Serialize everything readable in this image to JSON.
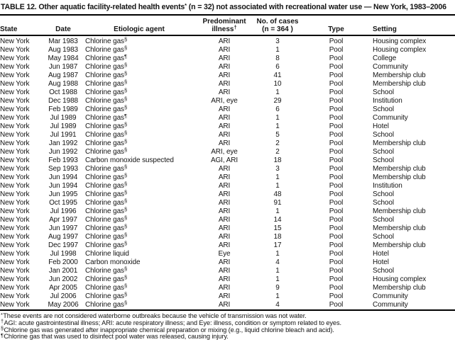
{
  "title": {
    "pre": "TABLE 12. Other aquatic facility-related health events",
    "sup": "*",
    "post": " (n = 32) not associated with recreational water use — New York, 1983–2006"
  },
  "table": {
    "headers": {
      "state": "State",
      "date": "Date",
      "agent": "Etiologic agent",
      "illness_line1": "Predominant",
      "illness_base": "illness",
      "illness_sup": "†",
      "cases_line1": "No. of cases",
      "cases_line2": "(n = 364 )",
      "type": "Type",
      "setting": "Setting"
    },
    "rows": [
      {
        "state": "New York",
        "date": "Mar 1983",
        "agent": "Chlorine gas",
        "agent_sup": "§",
        "illness": "ARI",
        "cases": 3,
        "type": "Pool",
        "setting": "Housing complex"
      },
      {
        "state": "New York",
        "date": "Aug 1983",
        "agent": "Chlorine gas",
        "agent_sup": "§",
        "illness": "ARI",
        "cases": 1,
        "type": "Pool",
        "setting": "Housing complex"
      },
      {
        "state": "New York",
        "date": "May 1984",
        "agent": "Chlorine gas",
        "agent_sup": "¶",
        "illness": "ARI",
        "cases": 8,
        "type": "Pool",
        "setting": "College"
      },
      {
        "state": "New York",
        "date": "Jun 1987",
        "agent": "Chlorine gas",
        "agent_sup": "§",
        "illness": "ARI",
        "cases": 6,
        "type": "Pool",
        "setting": "Community"
      },
      {
        "state": "New York",
        "date": "Aug 1987",
        "agent": "Chlorine gas",
        "agent_sup": "§",
        "illness": "ARI",
        "cases": 41,
        "type": "Pool",
        "setting": "Membership club"
      },
      {
        "state": "New York",
        "date": "Aug 1988",
        "agent": "Chlorine gas",
        "agent_sup": "§",
        "illness": "ARI",
        "cases": 10,
        "type": "Pool",
        "setting": "Membership club"
      },
      {
        "state": "New York",
        "date": "Oct 1988",
        "agent": "Chlorine gas",
        "agent_sup": "§",
        "illness": "ARI",
        "cases": 1,
        "type": "Pool",
        "setting": "School"
      },
      {
        "state": "New York",
        "date": "Dec 1988",
        "agent": "Chlorine gas",
        "agent_sup": "§",
        "illness": "ARI, eye",
        "cases": 29,
        "type": "Pool",
        "setting": "Institution"
      },
      {
        "state": "New York",
        "date": "Feb 1989",
        "agent": "Chlorine gas",
        "agent_sup": "§",
        "illness": "ARI",
        "cases": 6,
        "type": "Pool",
        "setting": "School"
      },
      {
        "state": "New York",
        "date": "Jul 1989",
        "agent": "Chlorine gas",
        "agent_sup": "¶",
        "illness": "ARI",
        "cases": 1,
        "type": "Pool",
        "setting": "Community"
      },
      {
        "state": "New York",
        "date": "Jul 1989",
        "agent": "Chlorine gas",
        "agent_sup": "§",
        "illness": "ARI",
        "cases": 1,
        "type": "Pool",
        "setting": "Hotel"
      },
      {
        "state": "New York",
        "date": "Jul 1991",
        "agent": "Chlorine gas",
        "agent_sup": "§",
        "illness": "ARI",
        "cases": 5,
        "type": "Pool",
        "setting": "School"
      },
      {
        "state": "New York",
        "date": "Jan 1992",
        "agent": "Chlorine gas",
        "agent_sup": "§",
        "illness": "ARI",
        "cases": 2,
        "type": "Pool",
        "setting": "Membership club"
      },
      {
        "state": "New York",
        "date": "Jun 1992",
        "agent": "Chlorine gas",
        "agent_sup": "§",
        "illness": "ARI, eye",
        "cases": 2,
        "type": "Pool",
        "setting": "School"
      },
      {
        "state": "New York",
        "date": "Feb 1993",
        "agent": "Carbon monoxide suspected",
        "agent_sup": "",
        "illness": "AGI, ARI",
        "cases": 18,
        "type": "Pool",
        "setting": "School"
      },
      {
        "state": "New York",
        "date": "Sep 1993",
        "agent": "Chlorine gas",
        "agent_sup": "§",
        "illness": "ARI",
        "cases": 3,
        "type": "Pool",
        "setting": "Membership club"
      },
      {
        "state": "New York",
        "date": "Jun 1994",
        "agent": "Chlorine gas",
        "agent_sup": "§",
        "illness": "ARI",
        "cases": 1,
        "type": "Pool",
        "setting": "Membership club"
      },
      {
        "state": "New York",
        "date": "Jun 1994",
        "agent": "Chlorine gas",
        "agent_sup": "§",
        "illness": "ARI",
        "cases": 1,
        "type": "Pool",
        "setting": "Institution"
      },
      {
        "state": "New York",
        "date": "Jun 1995",
        "agent": "Chlorine gas",
        "agent_sup": "§",
        "illness": "ARI",
        "cases": 48,
        "type": "Pool",
        "setting": "School"
      },
      {
        "state": "New York",
        "date": "Oct 1995",
        "agent": "Chlorine gas",
        "agent_sup": "§",
        "illness": "ARI",
        "cases": 91,
        "type": "Pool",
        "setting": "School"
      },
      {
        "state": "New York",
        "date": "Jul 1996",
        "agent": "Chlorine gas",
        "agent_sup": "§",
        "illness": "ARI",
        "cases": 1,
        "type": "Pool",
        "setting": "Membership club"
      },
      {
        "state": "New York",
        "date": "Apr 1997",
        "agent": "Chlorine gas",
        "agent_sup": "§",
        "illness": "ARI",
        "cases": 14,
        "type": "Pool",
        "setting": "School"
      },
      {
        "state": "New York",
        "date": "Jun 1997",
        "agent": "Chlorine gas",
        "agent_sup": "§",
        "illness": "ARI",
        "cases": 15,
        "type": "Pool",
        "setting": "Membership club"
      },
      {
        "state": "New York",
        "date": "Aug 1997",
        "agent": "Chlorine gas",
        "agent_sup": "§",
        "illness": "ARI",
        "cases": 18,
        "type": "Pool",
        "setting": "School"
      },
      {
        "state": "New York",
        "date": "Dec 1997",
        "agent": "Chlorine gas",
        "agent_sup": "§",
        "illness": "ARI",
        "cases": 17,
        "type": "Pool",
        "setting": "Membership club"
      },
      {
        "state": "New York",
        "date": "Jul 1998",
        "agent": "Chlorine liquid",
        "agent_sup": "",
        "illness": "Eye",
        "cases": 1,
        "type": "Pool",
        "setting": "Hotel"
      },
      {
        "state": "New York",
        "date": "Feb 2000",
        "agent": "Carbon monoxide",
        "agent_sup": "",
        "illness": "ARI",
        "cases": 4,
        "type": "Pool",
        "setting": "Hotel"
      },
      {
        "state": "New York",
        "date": "Jan 2001",
        "agent": "Chlorine gas",
        "agent_sup": "§",
        "illness": "ARI",
        "cases": 1,
        "type": "Pool",
        "setting": "School"
      },
      {
        "state": "New York",
        "date": "Jun 2002",
        "agent": "Chlorine gas",
        "agent_sup": "§",
        "illness": "ARI",
        "cases": 1,
        "type": "Pool",
        "setting": "Housing complex"
      },
      {
        "state": "New York",
        "date": "Apr 2005",
        "agent": "Chlorine gas",
        "agent_sup": "§",
        "illness": "ARI",
        "cases": 9,
        "type": "Pool",
        "setting": "Membership club"
      },
      {
        "state": "New York",
        "date": "Jul 2006",
        "agent": "Chlorine gas",
        "agent_sup": "§",
        "illness": "ARI",
        "cases": 1,
        "type": "Pool",
        "setting": "Community"
      },
      {
        "state": "New York",
        "date": "May 2006",
        "agent": "Chlorine gas",
        "agent_sup": "§",
        "illness": "ARI",
        "cases": 4,
        "type": "Pool",
        "setting": "Community"
      }
    ]
  },
  "footnotes": [
    {
      "mark": "*",
      "text": "These events are not considered waterborne outbreaks because the vehicle of transmission was not water."
    },
    {
      "mark": "†",
      "text": "AGI: acute gastrointestinal illness; ARI: acute respiratory illness; and Eye: illness, condition or symptom related to eyes."
    },
    {
      "mark": "§",
      "text": "Chlorine gas was generated after inappropriate chemical preparation or mixing (e.g., liquid chlorine bleach and acid)."
    },
    {
      "mark": "¶",
      "text": "Chlorine gas that was used to disinfect pool water was released, causing injury."
    }
  ],
  "colors": {
    "text": "#141414",
    "rule": "#000000",
    "background": "#ffffff"
  }
}
